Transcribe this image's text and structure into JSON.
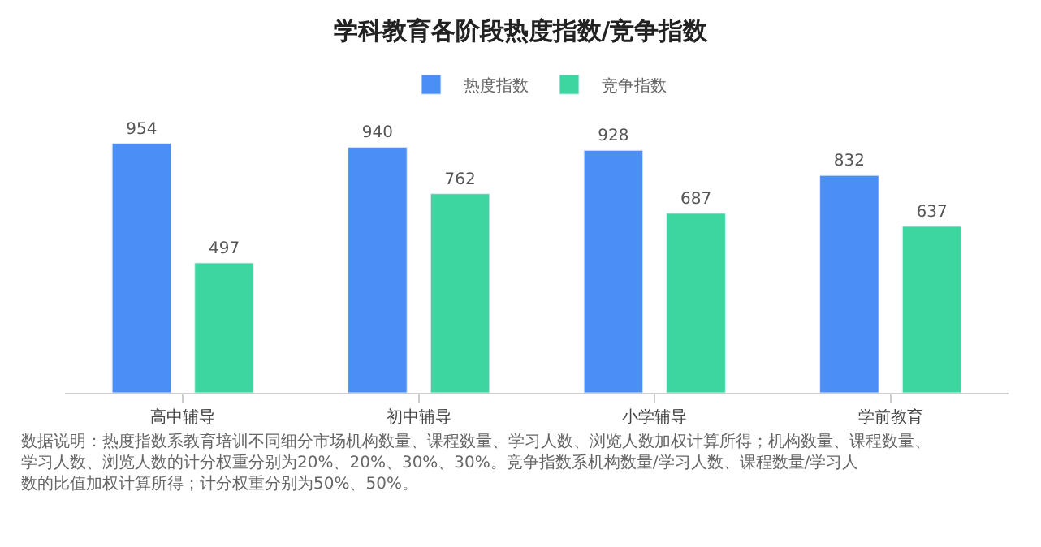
{
  "chart_data": {
    "type": "bar",
    "title": "学科教育各阶段热度指数/竞争指数",
    "categories": [
      "高中辅导",
      "初中辅导",
      "小学辅导",
      "学前教育"
    ],
    "series": [
      {
        "name": "热度指数",
        "color": "#4b8ef5",
        "values": [
          954,
          940,
          928,
          832
        ]
      },
      {
        "name": "竞争指数",
        "color": "#3dd6a0",
        "values": [
          497,
          762,
          687,
          637
        ]
      }
    ],
    "data_labels": true,
    "legend": "top",
    "annotations": [
      "数据说明：热度指数系教育培训不同细分市场机构数量、课程数量、学习人数、浏览人数加权计算所得；机构数量、课程数量、学习人数、浏览人数的计分权重分别为20%、20%、30%、30%。竞争指数系机构数量/学习人数、课程数量/学习人数的比值加权计算所得；计分权重分别为50%、50%。"
    ]
  }
}
